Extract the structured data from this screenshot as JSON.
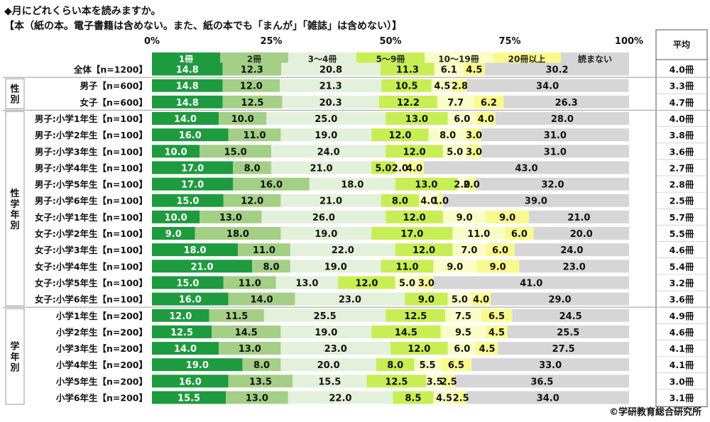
{
  "title_line1": "◆月にどれくらい本を読みますか。",
  "title_line2": "【本（紙の本。電子書籍は含めない。また、紙の本でも「まんが」「雑誌」は含めない）】",
  "credit": "©学研教育総合研究所",
  "colors": [
    "#1e9a3f",
    "#a4cf86",
    "#e3f1da",
    "#c8ee55",
    "#fafdc6",
    "#f9fa8e",
    "#d6d6d6"
  ],
  "chart_data": {
    "type": "bar",
    "orientation": "horizontal",
    "stacked": true,
    "percent": true,
    "xlim": [
      0,
      100
    ],
    "x_ticks": [
      "0%",
      "25%",
      "50%",
      "75%",
      "100%"
    ],
    "average_header": "平均",
    "groups": [
      {
        "label": "",
        "start": 0,
        "end": 0
      },
      {
        "label": "性別",
        "start": 1,
        "end": 2
      },
      {
        "label": "性学年別",
        "start": 3,
        "end": 14
      },
      {
        "label": "学年別",
        "start": 15,
        "end": 20
      }
    ],
    "series": [
      {
        "name": "1冊"
      },
      {
        "name": "2冊"
      },
      {
        "name": "3～4冊"
      },
      {
        "name": "5～9冊"
      },
      {
        "name": "10～19冊"
      },
      {
        "name": "20冊以上"
      },
      {
        "name": "読まない"
      }
    ],
    "rows": [
      {
        "label": "全体【n=1200】",
        "values": [
          14.8,
          12.3,
          20.8,
          11.3,
          6.1,
          4.5,
          30.2
        ],
        "labels": [
          "14.8",
          "12.3",
          "20.8",
          "11.3",
          "6.1",
          "4.5",
          "30.2"
        ],
        "average": "4.0冊"
      },
      {
        "label": "男子【n=600】",
        "values": [
          14.8,
          12.0,
          21.3,
          10.5,
          4.5,
          2.8,
          34.0
        ],
        "labels": [
          "14.8",
          "12.0",
          "21.3",
          "10.5",
          "4.5",
          "2.8",
          "34.0"
        ],
        "average": "3.3冊"
      },
      {
        "label": "女子【n=600】",
        "values": [
          14.8,
          12.5,
          20.3,
          12.2,
          7.7,
          6.2,
          26.3
        ],
        "labels": [
          "14.8",
          "12.5",
          "20.3",
          "12.2",
          "7.7",
          "6.2",
          "26.3"
        ],
        "average": "4.7冊"
      },
      {
        "label": "男子:小学1年生【n=100】",
        "values": [
          14.0,
          10.0,
          25.0,
          13.0,
          6.0,
          4.0,
          28.0
        ],
        "labels": [
          "14.0",
          "10.0",
          "25.0",
          "13.0",
          "6.0",
          "4.0",
          "28.0"
        ],
        "average": "4.0冊"
      },
      {
        "label": "男子:小学2年生【n=100】",
        "values": [
          16.0,
          11.0,
          19.0,
          12.0,
          8.0,
          3.0,
          31.0
        ],
        "labels": [
          "16.0",
          "11.0",
          "19.0",
          "12.0",
          "8.0",
          "3.0",
          "31.0"
        ],
        "average": "3.8冊"
      },
      {
        "label": "男子:小学3年生【n=100】",
        "values": [
          10.0,
          15.0,
          24.0,
          12.0,
          5.0,
          3.0,
          31.0
        ],
        "labels": [
          "10.0",
          "15.0",
          "24.0",
          "12.0",
          "5.0",
          "3.0",
          "31.0"
        ],
        "average": "3.6冊"
      },
      {
        "label": "男子:小学4年生【n=100】",
        "values": [
          17.0,
          8.0,
          21.0,
          5.0,
          2.0,
          4.0,
          43.0
        ],
        "labels": [
          "17.0",
          "8.0",
          "21.0",
          "5.0",
          "2.0",
          "4.0",
          "43.0"
        ],
        "average": "2.7冊"
      },
      {
        "label": "男子:小学5年生【n=100】",
        "values": [
          17.0,
          16.0,
          18.0,
          13.0,
          2.0,
          2.0,
          32.0
        ],
        "labels": [
          "17.0",
          "16.0",
          "18.0",
          "13.0",
          "2.0",
          "2.0",
          "32.0"
        ],
        "average": "2.8冊"
      },
      {
        "label": "男子:小学6年生【n=100】",
        "values": [
          15.0,
          12.0,
          21.0,
          8.0,
          4.0,
          1.0,
          39.0
        ],
        "labels": [
          "15.0",
          "12.0",
          "21.0",
          "8.0",
          "4.0",
          "1.0",
          "39.0"
        ],
        "average": "2.5冊"
      },
      {
        "label": "女子:小学1年生【n=100】",
        "values": [
          10.0,
          13.0,
          26.0,
          12.0,
          9.0,
          9.0,
          21.0
        ],
        "labels": [
          "10.0",
          "13.0",
          "26.0",
          "12.0",
          "9.0",
          "9.0",
          "21.0"
        ],
        "average": "5.7冊"
      },
      {
        "label": "女子:小学2年生【n=100】",
        "values": [
          9.0,
          18.0,
          19.0,
          17.0,
          11.0,
          6.0,
          20.0
        ],
        "labels": [
          "9.0",
          "18.0",
          "19.0",
          "17.0",
          "11.0",
          "6.0",
          "20.0"
        ],
        "average": "5.5冊"
      },
      {
        "label": "女子:小学3年生【n=100】",
        "values": [
          18.0,
          11.0,
          22.0,
          12.0,
          7.0,
          6.0,
          24.0
        ],
        "labels": [
          "18.0",
          "11.0",
          "22.0",
          "12.0",
          "7.0",
          "6.0",
          "24.0"
        ],
        "average": "4.6冊"
      },
      {
        "label": "女子:小学4年生【n=100】",
        "values": [
          21.0,
          8.0,
          19.0,
          11.0,
          9.0,
          9.0,
          23.0
        ],
        "labels": [
          "21.0",
          "8.0",
          "19.0",
          "11.0",
          "9.0",
          "9.0",
          "23.0"
        ],
        "average": "5.4冊"
      },
      {
        "label": "女子:小学5年生【n=100】",
        "values": [
          15.0,
          11.0,
          13.0,
          12.0,
          5.0,
          3.0,
          41.0
        ],
        "labels": [
          "15.0",
          "11.0",
          "13.0",
          "12.0",
          "5.0",
          "3.0",
          "41.0"
        ],
        "average": "3.2冊"
      },
      {
        "label": "女子:小学6年生【n=100】",
        "values": [
          16.0,
          14.0,
          23.0,
          9.0,
          5.0,
          4.0,
          29.0
        ],
        "labels": [
          "16.0",
          "14.0",
          "23.0",
          "9.0",
          "5.0",
          "4.0",
          "29.0"
        ],
        "average": "3.6冊"
      },
      {
        "label": "小学1年生【n=200】",
        "values": [
          12.0,
          11.5,
          25.5,
          12.5,
          7.5,
          6.5,
          24.5
        ],
        "labels": [
          "12.0",
          "11.5",
          "25.5",
          "12.5",
          "7.5",
          "6.5",
          "24.5"
        ],
        "average": "4.9冊"
      },
      {
        "label": "小学2年生【n=200】",
        "values": [
          12.5,
          14.5,
          19.0,
          14.5,
          9.5,
          4.5,
          25.5
        ],
        "labels": [
          "12.5",
          "14.5",
          "19.0",
          "14.5",
          "9.5",
          "4.5",
          "25.5"
        ],
        "average": "4.6冊"
      },
      {
        "label": "小学3年生【n=200】",
        "values": [
          14.0,
          13.0,
          23.0,
          12.0,
          6.0,
          4.5,
          27.5
        ],
        "labels": [
          "14.0",
          "13.0",
          "23.0",
          "12.0",
          "6.0",
          "4.5",
          "27.5"
        ],
        "average": "4.1冊"
      },
      {
        "label": "小学4年生【n=200】",
        "values": [
          19.0,
          8.0,
          20.0,
          8.0,
          5.5,
          6.5,
          33.0
        ],
        "labels": [
          "19.0",
          "8.0",
          "20.0",
          "8.0",
          "5.5",
          "6.5",
          "33.0"
        ],
        "average": "4.1冊"
      },
      {
        "label": "小学5年生【n=200】",
        "values": [
          16.0,
          13.5,
          15.5,
          12.5,
          3.5,
          2.5,
          36.5
        ],
        "labels": [
          "16.0",
          "13.5",
          "15.5",
          "12.5",
          "3.5",
          "2.5",
          "36.5"
        ],
        "average": "3.0冊"
      },
      {
        "label": "小学6年生【n=200】",
        "values": [
          15.5,
          13.0,
          22.0,
          8.5,
          4.5,
          2.5,
          34.0
        ],
        "labels": [
          "15.5",
          "13.0",
          "22.0",
          "8.5",
          "4.5",
          "2.5",
          "34.0"
        ],
        "average": "3.1冊"
      }
    ]
  }
}
